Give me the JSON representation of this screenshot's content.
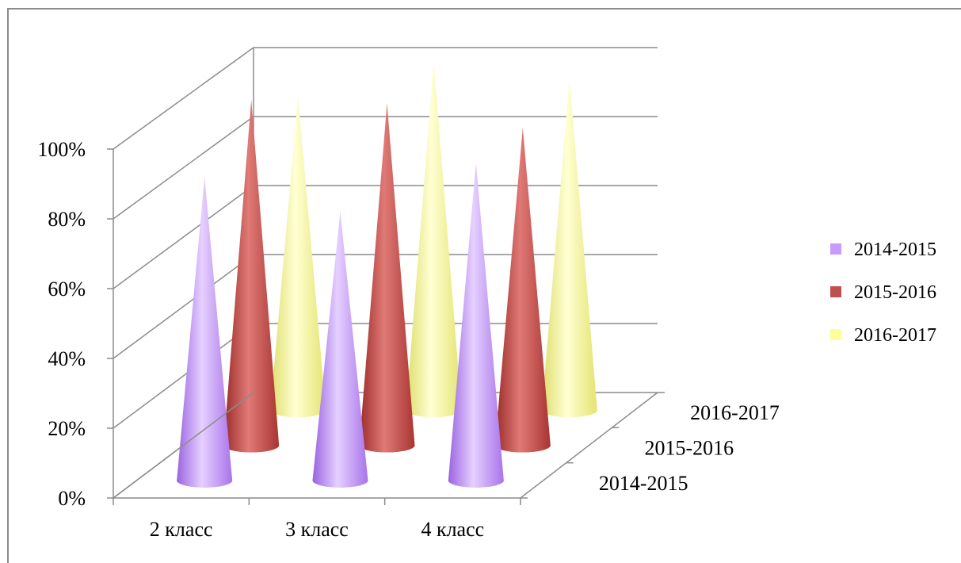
{
  "chart_data": {
    "type": "bar",
    "subtype": "3d-cone",
    "categories": [
      "2 класс",
      "3 класс",
      "4 класс"
    ],
    "y_tick_labels": [
      "0%",
      "20%",
      "40%",
      "60%",
      "80%",
      "100%"
    ],
    "ylim": [
      0,
      100
    ],
    "depth_labels": [
      "2014-2015",
      "2015-2016",
      "2016-2017"
    ],
    "legend_position": "right",
    "grid": true,
    "series": [
      {
        "name": "2014-2015",
        "color": "#c79bff",
        "values": [
          87,
          77,
          91
        ]
      },
      {
        "name": "2015-2016",
        "color": "#c0504d",
        "values": [
          99,
          98,
          91
        ]
      },
      {
        "name": "2016-2017",
        "color": "#ffff9a",
        "values": [
          90,
          100,
          95
        ]
      }
    ]
  }
}
